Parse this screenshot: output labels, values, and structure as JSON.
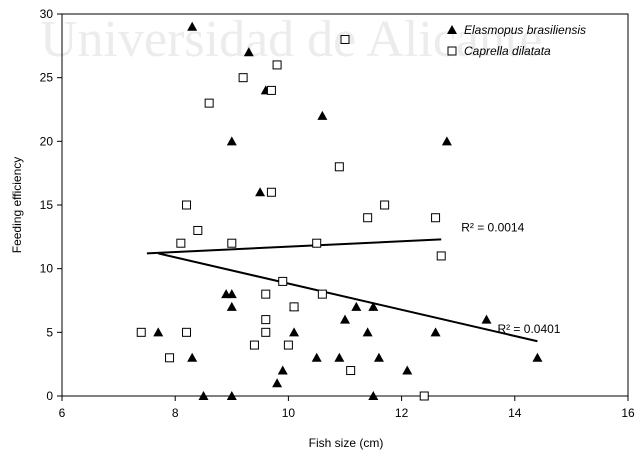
{
  "chart_data": {
    "type": "scatter",
    "title": "",
    "watermark": "Universidad de Alicante",
    "xlabel": "Fish size (cm)",
    "ylabel": "Feeding efficiency",
    "xlim": [
      6,
      16
    ],
    "ylim": [
      0,
      30
    ],
    "xticks": [
      6,
      8,
      10,
      12,
      14,
      16
    ],
    "yticks": [
      0,
      5,
      10,
      15,
      20,
      25,
      30
    ],
    "grid": false,
    "legend_position": "top-right",
    "series": [
      {
        "name": "Elasmopus brasiliensis",
        "marker": "filled-triangle",
        "color": "#000000",
        "points": [
          [
            8.3,
            29
          ],
          [
            9.3,
            27
          ],
          [
            9.6,
            24
          ],
          [
            10.6,
            22
          ],
          [
            9.0,
            20
          ],
          [
            12.8,
            20
          ],
          [
            9.5,
            16
          ],
          [
            8.9,
            8
          ],
          [
            9.0,
            8
          ],
          [
            9.0,
            7
          ],
          [
            11.2,
            7
          ],
          [
            11.5,
            7
          ],
          [
            10.1,
            7
          ],
          [
            11.0,
            6
          ],
          [
            13.5,
            6
          ],
          [
            7.7,
            5
          ],
          [
            10.1,
            5
          ],
          [
            11.4,
            5
          ],
          [
            12.6,
            5
          ],
          [
            8.3,
            3
          ],
          [
            10.5,
            3
          ],
          [
            10.9,
            3
          ],
          [
            11.6,
            3
          ],
          [
            14.4,
            3
          ],
          [
            9.9,
            2
          ],
          [
            12.1,
            2
          ],
          [
            9.8,
            1
          ],
          [
            8.5,
            0
          ],
          [
            9.0,
            0
          ],
          [
            11.5,
            0
          ]
        ]
      },
      {
        "name": "Caprella dilatata",
        "marker": "open-square",
        "color": "#000000",
        "points": [
          [
            11.0,
            28
          ],
          [
            9.8,
            26
          ],
          [
            9.2,
            25
          ],
          [
            9.7,
            24
          ],
          [
            8.6,
            23
          ],
          [
            10.9,
            18
          ],
          [
            9.7,
            16
          ],
          [
            8.2,
            15
          ],
          [
            11.7,
            15
          ],
          [
            11.4,
            14
          ],
          [
            12.6,
            14
          ],
          [
            8.4,
            13
          ],
          [
            8.1,
            12
          ],
          [
            9.0,
            12
          ],
          [
            10.5,
            12
          ],
          [
            12.7,
            11
          ],
          [
            9.9,
            9
          ],
          [
            9.6,
            8
          ],
          [
            10.6,
            8
          ],
          [
            10.1,
            7
          ],
          [
            9.6,
            6
          ],
          [
            7.4,
            5
          ],
          [
            8.2,
            5
          ],
          [
            9.6,
            5
          ],
          [
            9.4,
            4
          ],
          [
            10.0,
            4
          ],
          [
            7.9,
            3
          ],
          [
            11.1,
            2
          ],
          [
            12.4,
            0
          ]
        ]
      }
    ],
    "trendlines": [
      {
        "series": "Caprella dilatata",
        "x": [
          7.5,
          12.7
        ],
        "y": [
          11.2,
          12.3
        ],
        "label": "R² = 0.0014"
      },
      {
        "series": "Elasmopus brasiliensis",
        "x": [
          7.7,
          14.4
        ],
        "y": [
          11.2,
          4.3
        ],
        "label": "R² = 0.0401"
      }
    ]
  }
}
